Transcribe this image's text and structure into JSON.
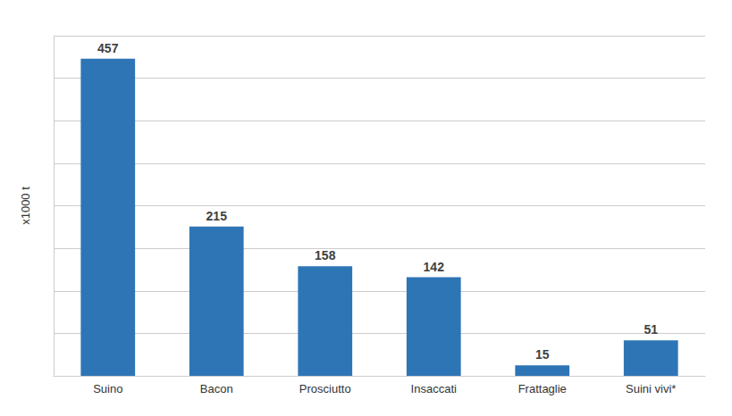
{
  "chart_data": {
    "type": "bar",
    "categories": [
      "Suino",
      "Bacon",
      "Prosciutto",
      "Insaccati",
      "Frattaglie",
      "Suini vivi*"
    ],
    "values": [
      457,
      215,
      158,
      142,
      15,
      51
    ],
    "color": "#2E75B6",
    "ylabel": "x1000 t",
    "ylim": [
      0,
      490
    ],
    "yticks": [
      0,
      61.25,
      122.5,
      183.75,
      245,
      306.25,
      367.5,
      428.75,
      490
    ],
    "grid": true,
    "tick_labels": "x",
    "data_labels": true
  }
}
